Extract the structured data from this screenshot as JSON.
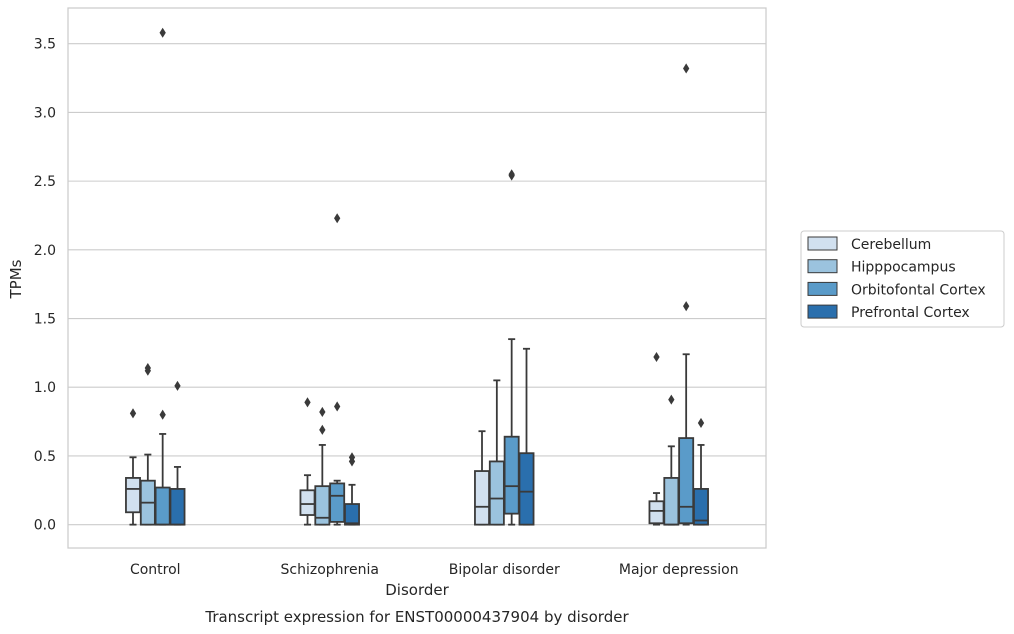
{
  "caption": "Transcript expression for ENST00000437904 by disorder",
  "chart_data": {
    "type": "box",
    "xlabel": "Disorder",
    "ylabel": "TPMs",
    "ylim": [
      -0.17,
      3.76
    ],
    "yticks": [
      0.0,
      0.5,
      1.0,
      1.5,
      2.0,
      2.5,
      3.0,
      3.5
    ],
    "ytick_labels": [
      "0.0",
      "0.5",
      "1.0",
      "1.5",
      "2.0",
      "2.5",
      "3.0",
      "3.5"
    ],
    "grid": "horizontal",
    "legend_position": "right",
    "categories": [
      "Control",
      "Schizophrenia",
      "Bipolar disorder",
      "Major depression"
    ],
    "series": [
      {
        "name": "Cerebellum",
        "color": "#d1e0ef",
        "boxes": [
          {
            "whisker_low": 0.0,
            "q1": 0.09,
            "median": 0.26,
            "q3": 0.34,
            "whisker_high": 0.49,
            "outliers": [
              0.81
            ]
          },
          {
            "whisker_low": 0.0,
            "q1": 0.07,
            "median": 0.15,
            "q3": 0.25,
            "whisker_high": 0.36,
            "outliers": [
              0.89
            ]
          },
          {
            "whisker_low": 0.0,
            "q1": 0.0,
            "median": 0.13,
            "q3": 0.39,
            "whisker_high": 0.68,
            "outliers": []
          },
          {
            "whisker_low": 0.0,
            "q1": 0.01,
            "median": 0.1,
            "q3": 0.17,
            "whisker_high": 0.23,
            "outliers": [
              1.22
            ]
          }
        ]
      },
      {
        "name": "Hipppocampus",
        "color": "#9bc3de",
        "boxes": [
          {
            "whisker_low": 0.0,
            "q1": 0.0,
            "median": 0.16,
            "q3": 0.32,
            "whisker_high": 0.51,
            "outliers": [
              1.12,
              1.14
            ]
          },
          {
            "whisker_low": 0.0,
            "q1": 0.0,
            "median": 0.05,
            "q3": 0.28,
            "whisker_high": 0.58,
            "outliers": [
              0.69,
              0.82
            ]
          },
          {
            "whisker_low": 0.0,
            "q1": 0.0,
            "median": 0.19,
            "q3": 0.46,
            "whisker_high": 1.05,
            "outliers": []
          },
          {
            "whisker_low": 0.0,
            "q1": 0.0,
            "median": 0.0,
            "q3": 0.34,
            "whisker_high": 0.57,
            "outliers": [
              0.91
            ]
          }
        ]
      },
      {
        "name": "Orbitofontal Cortex",
        "color": "#5a9bc9",
        "boxes": [
          {
            "whisker_low": 0.0,
            "q1": 0.0,
            "median": 0.0,
            "q3": 0.27,
            "whisker_high": 0.66,
            "outliers": [
              0.8,
              3.58
            ]
          },
          {
            "whisker_low": 0.0,
            "q1": 0.02,
            "median": 0.21,
            "q3": 0.3,
            "whisker_high": 0.32,
            "outliers": [
              0.86,
              2.23
            ]
          },
          {
            "whisker_low": 0.0,
            "q1": 0.08,
            "median": 0.28,
            "q3": 0.64,
            "whisker_high": 1.35,
            "outliers": [
              2.54,
              2.55
            ]
          },
          {
            "whisker_low": 0.0,
            "q1": 0.01,
            "median": 0.13,
            "q3": 0.63,
            "whisker_high": 1.24,
            "outliers": [
              1.59,
              3.32
            ]
          }
        ]
      },
      {
        "name": "Prefrontal Cortex",
        "color": "#2a6fad",
        "boxes": [
          {
            "whisker_low": 0.0,
            "q1": 0.0,
            "median": 0.0,
            "q3": 0.26,
            "whisker_high": 0.42,
            "outliers": [
              1.01
            ]
          },
          {
            "whisker_low": 0.0,
            "q1": 0.0,
            "median": 0.01,
            "q3": 0.15,
            "whisker_high": 0.29,
            "outliers": [
              0.46,
              0.49
            ]
          },
          {
            "whisker_low": 0.0,
            "q1": 0.0,
            "median": 0.24,
            "q3": 0.52,
            "whisker_high": 1.28,
            "outliers": []
          },
          {
            "whisker_low": 0.0,
            "q1": 0.0,
            "median": 0.03,
            "q3": 0.26,
            "whisker_high": 0.58,
            "outliers": [
              0.74
            ]
          }
        ]
      }
    ]
  }
}
